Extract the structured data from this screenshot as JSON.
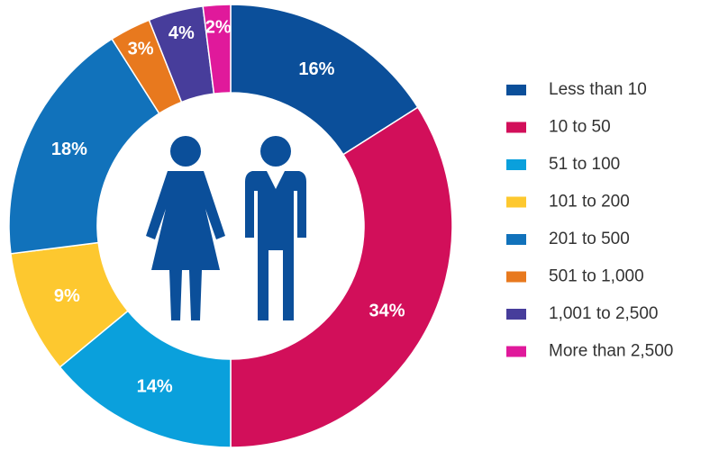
{
  "chart_data": {
    "type": "donut",
    "categories": [
      "Less than 10",
      "10 to 50",
      "51 to 100",
      "101 to 200",
      "201 to 500",
      "501 to 1,000",
      "1,001 to 2,500",
      "More than 2,500"
    ],
    "values": [
      16,
      34,
      14,
      9,
      18,
      3,
      4,
      2
    ],
    "value_labels": [
      "16%",
      "34%",
      "14%",
      "9%",
      "18%",
      "3%",
      "4%",
      "2%"
    ],
    "colors": [
      "#0b4f9a",
      "#d20f5a",
      "#0aa0dc",
      "#fdc82f",
      "#1172bb",
      "#e8791e",
      "#473d9b",
      "#e0199b"
    ],
    "legend": "right"
  }
}
